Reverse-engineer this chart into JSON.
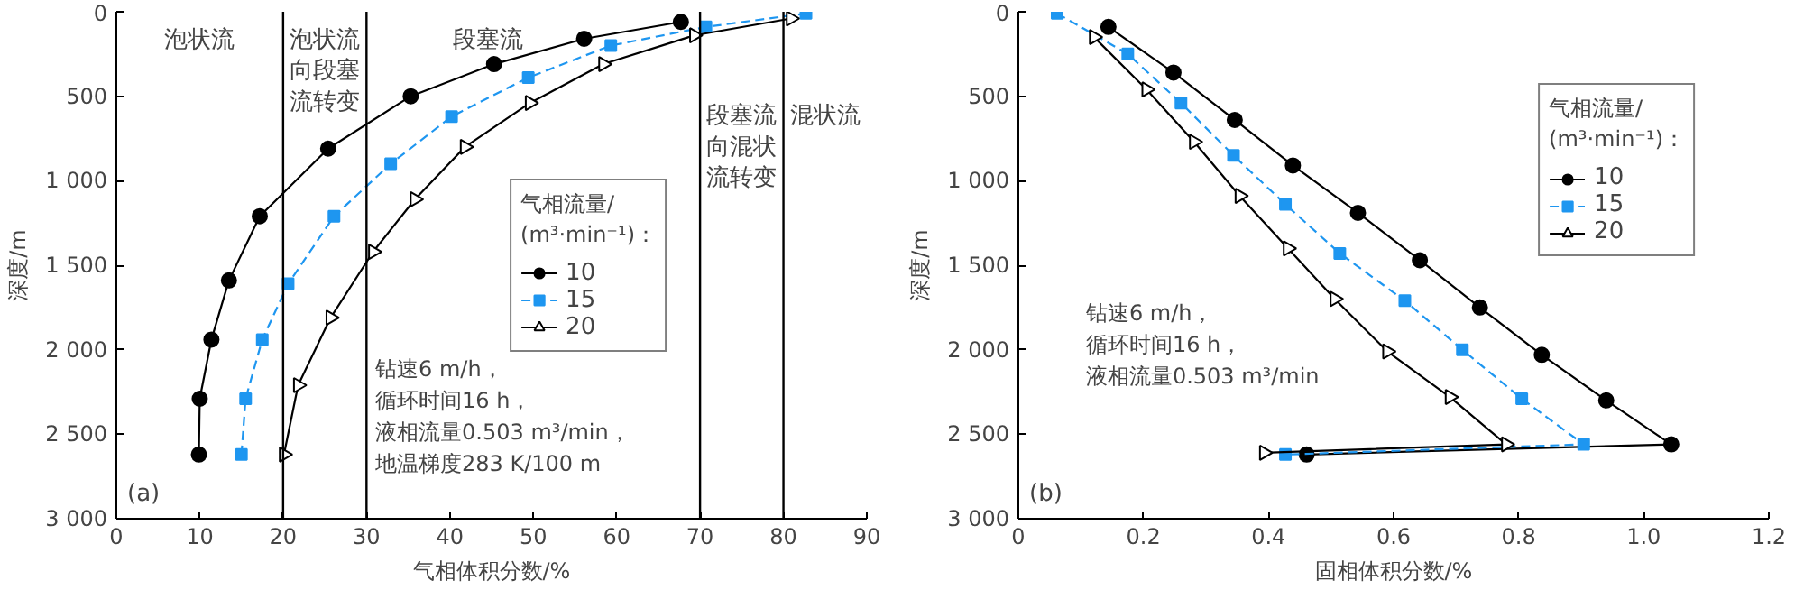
{
  "chart_data": [
    {
      "type": "line",
      "xlabel": "气相体积分数/%",
      "ylabel": "深度/m",
      "legend_title": "气相流量/\n(m³·min⁻¹)：",
      "legend": "right",
      "grid": false,
      "xlim": [
        0,
        90
      ],
      "xticks": [
        0,
        10,
        20,
        30,
        40,
        50,
        60,
        70,
        80,
        90
      ],
      "ylim": [
        3000,
        0
      ],
      "yticks": [
        0,
        500,
        {
          "value": 1000,
          "label": "1 000"
        },
        {
          "value": 1500,
          "label": "1 500"
        },
        {
          "value": 2000,
          "label": "2 000"
        },
        {
          "value": 2500,
          "label": "2 500"
        },
        {
          "value": 3000,
          "label": "3 000"
        }
      ],
      "series": [
        {
          "name": "10",
          "color": "#000000",
          "marker": "circle",
          "line_style": "solid",
          "x": [
            9.9,
            10.0,
            11.4,
            13.5,
            17.2,
            25.4,
            35.3,
            45.3,
            56.1,
            67.7
          ],
          "values": [
            2620,
            2290,
            1940,
            1590,
            1210,
            810,
            500,
            310,
            160,
            60
          ]
        },
        {
          "name": "15",
          "color": "#1e96f0",
          "marker": "square",
          "line_style": "dashed",
          "x": [
            15.0,
            15.5,
            17.5,
            20.6,
            26.1,
            32.9,
            40.2,
            49.4,
            59.3,
            70.7,
            82.7
          ],
          "values": [
            2620,
            2290,
            1940,
            1610,
            1210,
            900,
            620,
            390,
            200,
            90,
            10
          ]
        },
        {
          "name": "20",
          "color": "#000000",
          "marker": "triangle",
          "line_style": "solid",
          "x": [
            20.1,
            21.8,
            25.7,
            30.8,
            35.8,
            41.8,
            49.6,
            58.4,
            69.3,
            80.9
          ],
          "values": [
            2620,
            2210,
            1810,
            1420,
            1110,
            800,
            540,
            310,
            140,
            40
          ]
        }
      ],
      "ref_lines": [
        {
          "axis": "x",
          "value": 20
        },
        {
          "axis": "x",
          "value": 30
        },
        {
          "axis": "x",
          "value": 70
        },
        {
          "axis": "x",
          "value": 80
        }
      ],
      "annotations": [
        "(a)",
        "钻速6 m/h，循环时间16 h，液相流量0.503 m³/min，地温梯度283 K/100 m",
        "泡状流",
        "泡状流向段塞流转变",
        "段塞流",
        "段塞流向混状流转变",
        "混状流"
      ]
    },
    {
      "type": "line",
      "xlabel": "固相体积分数/%",
      "ylabel": "深度/m",
      "legend_title": "气相流量/\n(m³·min⁻¹)：",
      "legend": "top right",
      "grid": false,
      "xlim": [
        0,
        1.2
      ],
      "xticks": [
        0,
        0.2,
        0.4,
        0.6,
        0.8,
        {
          "value": 1,
          "label": "1.0"
        },
        1.2
      ],
      "ylim": [
        3000,
        0
      ],
      "yticks": [
        0,
        500,
        {
          "value": 1000,
          "label": "1 000"
        },
        {
          "value": 1500,
          "label": "1 500"
        },
        {
          "value": 2000,
          "label": "2 000"
        },
        {
          "value": 2500,
          "label": "2 500"
        },
        {
          "value": 3000,
          "label": "3 000"
        }
      ],
      "series": [
        {
          "name": "10",
          "color": "#000000",
          "marker": "circle",
          "line_style": "solid",
          "x": [
            0.144,
            0.248,
            0.346,
            0.439,
            0.543,
            0.642,
            0.738,
            0.837,
            0.94,
            1.044,
            0.461
          ],
          "values": [
            90,
            360,
            640,
            910,
            1190,
            1470,
            1750,
            2030,
            2300,
            2560,
            2620
          ]
        },
        {
          "name": "15",
          "color": "#1e96f0",
          "marker": "square",
          "line_style": "dashed",
          "x": [
            0.062,
            0.175,
            0.26,
            0.344,
            0.427,
            0.514,
            0.618,
            0.71,
            0.805,
            0.904,
            0.427
          ],
          "values": [
            10,
            250,
            540,
            850,
            1140,
            1430,
            1710,
            2000,
            2290,
            2560,
            2620
          ]
        },
        {
          "name": "20",
          "color": "#000000",
          "marker": "triangle",
          "line_style": "solid",
          "x": [
            0.121,
            0.205,
            0.281,
            0.354,
            0.431,
            0.506,
            0.59,
            0.69,
            0.78,
            0.393
          ],
          "values": [
            150,
            460,
            770,
            1090,
            1400,
            1700,
            2010,
            2280,
            2560,
            2610
          ]
        }
      ],
      "annotations": [
        "(b)",
        "钻速6 m/h，循环时间16 h，液相流量0.503 m³/min"
      ]
    }
  ]
}
